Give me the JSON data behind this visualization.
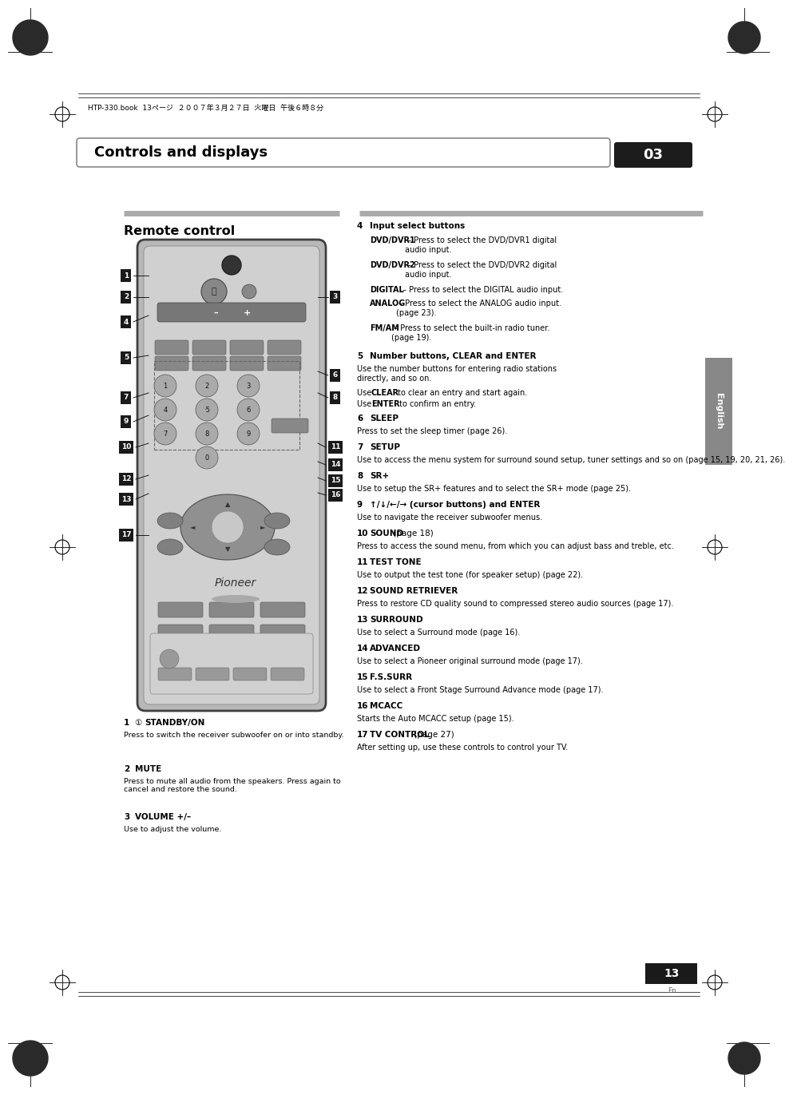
{
  "bg_color": "#ffffff",
  "page_width": 9.54,
  "page_height": 13.51,
  "header_text": "HTP-330.book  13ページ  ２００７年３月２７日  火曜日  午後６時８分",
  "chapter_title": "Controls and displays",
  "chapter_num": "03",
  "section_title": "Remote control",
  "item4_lines": [
    "DVD/DVR1– Press to select the DVD/DVR1 digital audio input.",
    "DVD/DVR2 – Press to select the DVD/DVR2 digital audio input.",
    "DIGITAL – Press to select the DIGITAL audio input.",
    "ANALOG – Press to select the ANALOG audio input. (page 23).",
    "FM/AM – Press to select the built-in radio tuner. (page 19)."
  ],
  "left_desc": [
    {
      "num": "1",
      "sym": "①",
      "title": "STANDBY/ON",
      "text": "Press to switch the receiver subwoofer on or into standby."
    },
    {
      "num": "2",
      "title": "MUTE",
      "text": "Press to mute all audio from the speakers. Press again to cancel and restore the sound."
    },
    {
      "num": "3",
      "title": "VOLUME +/–",
      "text": "Use to adjust the volume."
    }
  ],
  "right_items": [
    {
      "num": "6",
      "title": "SLEEP",
      "text": "Press to set the sleep timer (page 26)."
    },
    {
      "num": "7",
      "title": "SETUP",
      "text": "Use to access the menu system for surround sound setup, tuner settings and so on (page 15, 19, 20, 21, 26)."
    },
    {
      "num": "8",
      "title": "SR+",
      "text": "Use to setup the SR+ features and to select the SR+ mode (page 25)."
    },
    {
      "num": "9",
      "title": "↑/↓/←/→ (cursor buttons) and ENTER",
      "text": "Use to navigate the receiver subwoofer menus."
    },
    {
      "num": "10",
      "title": "SOUND",
      "title_extra": " (page 18)",
      "text": "Press to access the sound menu, from which you can adjust bass and treble, etc."
    },
    {
      "num": "11",
      "title": "TEST TONE",
      "text": "Use to output the test tone (for speaker setup) (page 22)."
    },
    {
      "num": "12",
      "title": "SOUND RETRIEVER",
      "text": "Press to restore CD quality sound to compressed stereo audio sources (page 17)."
    },
    {
      "num": "13",
      "title": "SURROUND",
      "text": "Use to select a Surround mode (page 16)."
    },
    {
      "num": "14",
      "title": "ADVANCED",
      "text": "Use to select a Pioneer original surround mode (page 17)."
    },
    {
      "num": "15",
      "title": "F.S.SURR",
      "text": "Use to select a Front Stage Surround Advance mode (page 17)."
    },
    {
      "num": "16",
      "title": "MCACC",
      "text": "Starts the Auto MCACC setup (page 15)."
    },
    {
      "num": "17",
      "title": "TV CONTROL",
      "title_extra": " (page 27)",
      "text": "After setting up, use these controls to control your TV."
    }
  ]
}
